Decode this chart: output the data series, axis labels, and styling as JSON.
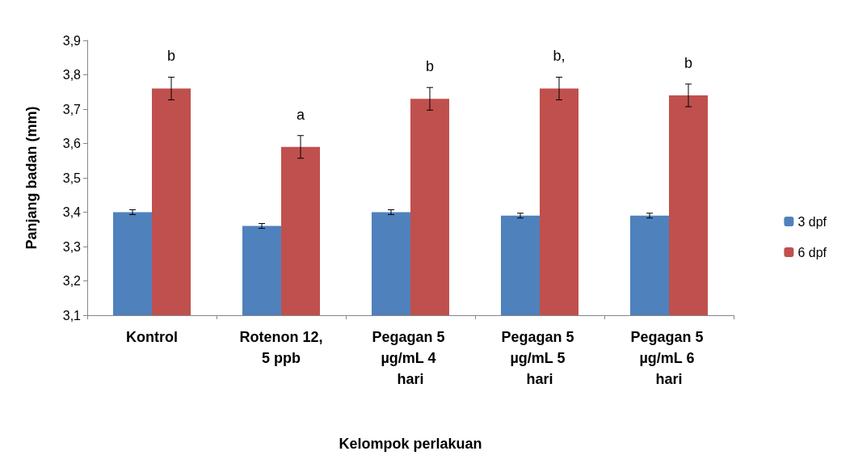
{
  "chart_data": {
    "type": "bar",
    "xlabel": "Kelompok perlakuan",
    "ylabel": "Panjang badan (mm)",
    "categories": [
      "Kontrol",
      "Rotenon 12,5 ppb",
      "Pegagan 5 µg/mL 4 hari",
      "Pegagan 5 µg/mL 5 hari",
      "Pegagan 5 µg/mL 6 hari"
    ],
    "series": [
      {
        "name": "3 dpf",
        "color": "#4f81bd",
        "values": [
          3.4,
          3.36,
          3.4,
          3.39,
          3.39
        ],
        "errors": [
          0.007,
          0.007,
          0.007,
          0.007,
          0.007
        ]
      },
      {
        "name": "6 dpf",
        "color": "#c0504d",
        "values": [
          3.76,
          3.59,
          3.73,
          3.76,
          3.74
        ],
        "errors": [
          0.033,
          0.033,
          0.033,
          0.033,
          0.033
        ]
      }
    ],
    "ylim": [
      3.1,
      3.9
    ],
    "yticks": [
      {
        "value": 3.1,
        "label": "3,1"
      },
      {
        "value": 3.2,
        "label": "3,2"
      },
      {
        "value": 3.3,
        "label": "3,3"
      },
      {
        "value": 3.4,
        "label": "3,4"
      },
      {
        "value": 3.5,
        "label": "3,5"
      },
      {
        "value": 3.6,
        "label": "3,6"
      },
      {
        "value": 3.7,
        "label": "3,7"
      },
      {
        "value": 3.8,
        "label": "3,8"
      },
      {
        "value": 3.9,
        "label": "3,9"
      }
    ],
    "annotations": [
      "b",
      "a",
      "b",
      "b,",
      "b"
    ],
    "grid": false,
    "legend": "right"
  }
}
